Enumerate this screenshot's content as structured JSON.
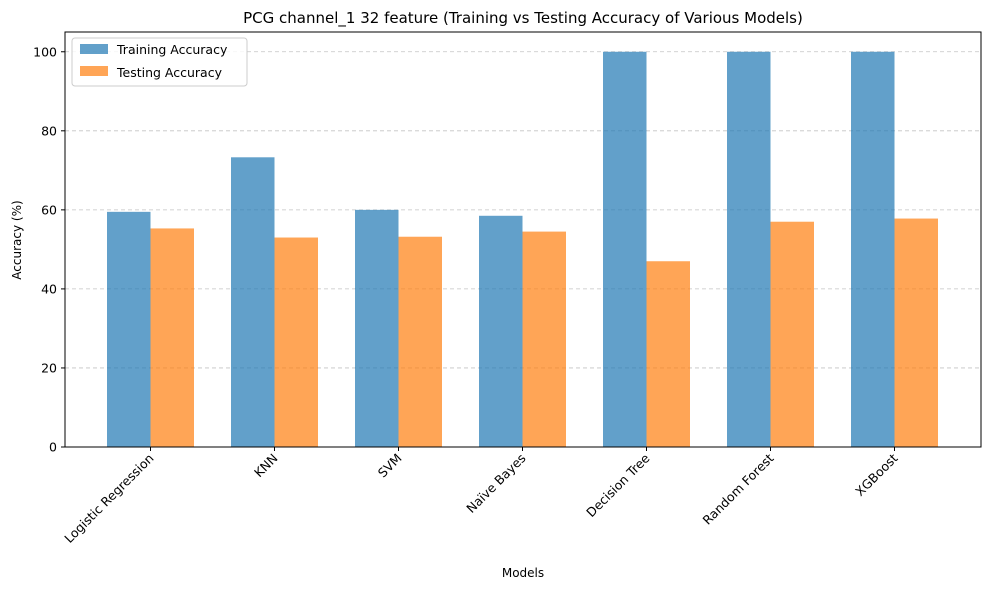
{
  "chart_data": {
    "type": "bar",
    "title": "PCG channel_1 32 feature (Training vs Testing Accuracy of Various Models)",
    "xlabel": "Models",
    "ylabel": "Accuracy (%)",
    "categories": [
      "Logistic Regression",
      "KNN",
      "SVM",
      "Naïve Bayes",
      "Decision Tree",
      "Random Forest",
      "XGBoost"
    ],
    "series": [
      {
        "name": "Training Accuracy",
        "color": "#1f77b4",
        "values": [
          59.5,
          73.3,
          60.0,
          58.5,
          100,
          100,
          100
        ]
      },
      {
        "name": "Testing Accuracy",
        "color": "#ff7f0e",
        "values": [
          55.3,
          53.0,
          53.2,
          54.5,
          47.0,
          57.0,
          57.8
        ]
      }
    ],
    "ylim": [
      0,
      105
    ],
    "yticks": [
      0,
      20,
      40,
      60,
      80,
      100
    ],
    "grid": "y-dashed",
    "legend_position": "top-left",
    "bar_opacity": 0.7
  }
}
